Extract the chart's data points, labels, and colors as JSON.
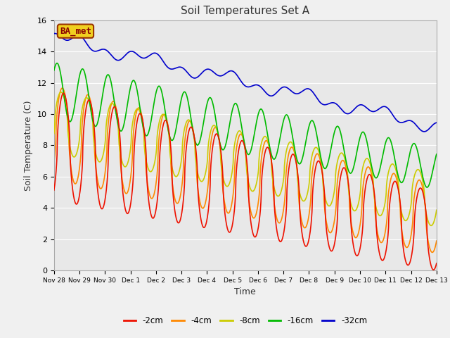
{
  "title": "Soil Temperatures Set A",
  "xlabel": "Time",
  "ylabel": "Soil Temperature (C)",
  "ylim": [
    0,
    16
  ],
  "background_color": "#f0f0f0",
  "plot_bg_color": "#e8e8e8",
  "label_text": "BA_met",
  "legend_labels": [
    "-2cm",
    "-4cm",
    "-8cm",
    "-16cm",
    "-32cm"
  ],
  "line_colors": [
    "#ee1100",
    "#ff8800",
    "#cccc00",
    "#00bb00",
    "#0000cc"
  ],
  "x_tick_labels": [
    "Nov 28",
    "Nov 29",
    "Nov 30",
    "Dec 1",
    "Dec 2",
    "Dec 3",
    "Dec 4",
    "Dec 5",
    "Dec 6",
    "Dec 7",
    "Dec 8",
    "Dec 9",
    "Dec 10",
    "Dec 11",
    "Dec 12",
    "Dec 13"
  ],
  "line_width": 1.2,
  "grid_color": "#ffffff",
  "n_points": 1500
}
